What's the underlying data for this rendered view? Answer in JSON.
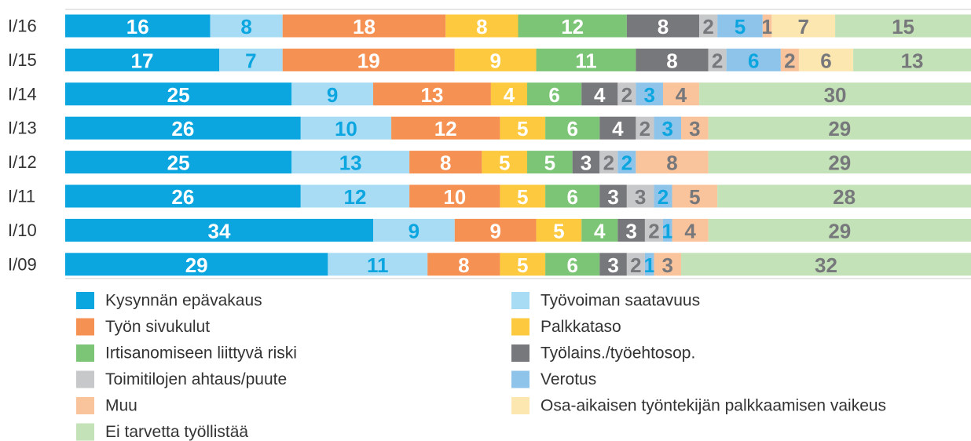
{
  "chart_data": {
    "type": "stacked-bar-horizontal",
    "categories": [
      "I/16",
      "I/15",
      "I/14",
      "I/13",
      "I/12",
      "I/11",
      "I/10",
      "I/09"
    ],
    "xlim": [
      0,
      100
    ],
    "series": [
      {
        "name": "Kysynnän epävakaus",
        "color": "#0ba5e0",
        "label_color": "#ffffff",
        "values": [
          16,
          17,
          25,
          26,
          25,
          26,
          34,
          29
        ]
      },
      {
        "name": "Työvoiman saatavuus",
        "color": "#a8dcf5",
        "label_color": "#0ba5e0",
        "values": [
          8,
          7,
          9,
          10,
          13,
          12,
          9,
          11
        ]
      },
      {
        "name": "Työn sivukulut",
        "color": "#f59152",
        "label_color": "#ffffff",
        "values": [
          18,
          19,
          13,
          12,
          8,
          10,
          9,
          8
        ]
      },
      {
        "name": "Palkkataso",
        "color": "#fdc93f",
        "label_color": "#ffffff",
        "values": [
          8,
          9,
          4,
          5,
          5,
          5,
          5,
          5
        ]
      },
      {
        "name": "Irtisanomiseen liittyvä riski",
        "color": "#7cc576",
        "label_color": "#ffffff",
        "values": [
          12,
          11,
          6,
          6,
          5,
          6,
          4,
          6
        ]
      },
      {
        "name": "Työlains./työehtosop.",
        "color": "#77787b",
        "label_color": "#ffffff",
        "values": [
          8,
          8,
          4,
          4,
          3,
          3,
          3,
          3
        ]
      },
      {
        "name": "Toimitilojen ahtaus/puute",
        "color": "#c7c8ca",
        "label_color": "#77787b",
        "values": [
          2,
          2,
          2,
          2,
          2,
          3,
          2,
          2
        ]
      },
      {
        "name": "Verotus",
        "color": "#8fc4ea",
        "label_color": "#0ba5e0",
        "values": [
          5,
          6,
          3,
          3,
          2,
          2,
          1,
          1
        ]
      },
      {
        "name": "Muu",
        "color": "#f9c39c",
        "label_color": "#77787b",
        "values": [
          1,
          2,
          4,
          3,
          8,
          5,
          4,
          3
        ]
      },
      {
        "name": "Osa-aikaisen työntekijän palkkaamisen vaikeus",
        "color": "#fde7b0",
        "label_color": "#77787b",
        "values": [
          7,
          6,
          null,
          null,
          null,
          null,
          null,
          null
        ]
      },
      {
        "name": "Ei tarvetta työllistää",
        "color": "#c3e2b7",
        "label_color": "#77787b",
        "values": [
          15,
          13,
          30,
          29,
          29,
          28,
          29,
          32
        ]
      }
    ]
  }
}
